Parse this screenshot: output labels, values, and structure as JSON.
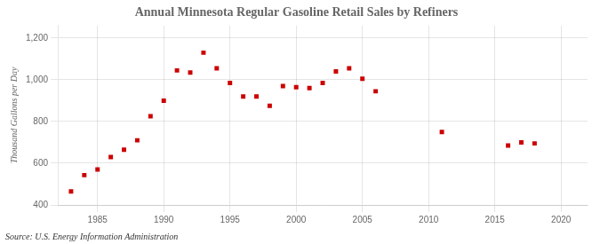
{
  "chart_data": {
    "type": "scatter",
    "title": "Annual Minnesota Regular Gasoline Retail Sales by Refiners",
    "ylabel": "Thousand Gallons per Day",
    "annotation": "Source: U.S. Energy Information Administration",
    "x": [
      1983,
      1984,
      1985,
      1986,
      1987,
      1988,
      1989,
      1990,
      1991,
      1992,
      1993,
      1994,
      1995,
      1996,
      1997,
      1998,
      1999,
      2000,
      2001,
      2002,
      2003,
      2004,
      2005,
      2006,
      2011,
      2016,
      2017,
      2018
    ],
    "values": [
      465,
      543,
      570,
      630,
      665,
      710,
      825,
      900,
      1045,
      1035,
      1130,
      1055,
      985,
      920,
      920,
      875,
      970,
      965,
      960,
      985,
      1040,
      1055,
      1005,
      945,
      750,
      685,
      700,
      695
    ],
    "color": "#cc0000",
    "marker": "square",
    "xlim": [
      1982,
      2022
    ],
    "ylim": [
      400,
      1260
    ],
    "xticks": [
      1985,
      1990,
      1995,
      2000,
      2005,
      2010,
      2015,
      2020
    ],
    "yticks": [
      400,
      600,
      800,
      {
        "value": 1000,
        "label": "1,000"
      },
      {
        "value": 1200,
        "label": "1,200"
      }
    ],
    "grid": true
  }
}
